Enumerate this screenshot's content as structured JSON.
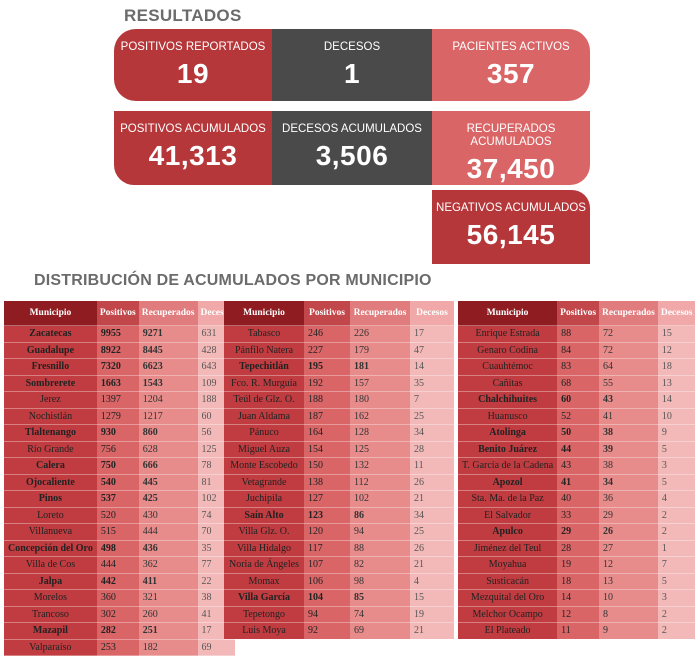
{
  "titles": {
    "results": "RESULTADOS",
    "distribution": "DISTRIBUCIÓN DE ACUMULADOS POR MUNICIPIO"
  },
  "cards": {
    "positivos_reportados": {
      "label": "POSITIVOS REPORTADOS",
      "value": "19"
    },
    "decesos": {
      "label": "DECESOS",
      "value": "1"
    },
    "pacientes_activos": {
      "label": "PACIENTES ACTIVOS",
      "value": "357"
    },
    "positivos_acumulados": {
      "label": "POSITIVOS ACUMULADOS",
      "value": "41,313"
    },
    "decesos_acumulados": {
      "label": "DECESOS ACUMULADOS",
      "value": "3,506"
    },
    "recuperados_acumulados": {
      "label": "RECUPERADOS ACUMULADOS",
      "value": "37,450"
    },
    "negativos_acumulados": {
      "label": "NEGATIVOS ACUMULADOS",
      "value": "56,145"
    }
  },
  "colors": {
    "dark_red": "#b5373a",
    "gray": "#4a4a4a",
    "pink": "#d96566"
  },
  "table_headers": [
    "Municipio",
    "Positivos",
    "Recuperados",
    "Decesos"
  ],
  "tables": [
    [
      {
        "m": "Zacatecas",
        "p": "9955",
        "r": "9271",
        "d": "631",
        "bold": true
      },
      {
        "m": "Guadalupe",
        "p": "8922",
        "r": "8445",
        "d": "428",
        "bold": true
      },
      {
        "m": "Fresnillo",
        "p": "7320",
        "r": "6623",
        "d": "643",
        "bold": true
      },
      {
        "m": "Sombrerete",
        "p": "1663",
        "r": "1543",
        "d": "109",
        "bold": true
      },
      {
        "m": "Jerez",
        "p": "1397",
        "r": "1204",
        "d": "188",
        "bold": false
      },
      {
        "m": "Nochistlán",
        "p": "1279",
        "r": "1217",
        "d": "60",
        "bold": false
      },
      {
        "m": "Tlaltenango",
        "p": "930",
        "r": "860",
        "d": "56",
        "bold": true
      },
      {
        "m": "Río Grande",
        "p": "756",
        "r": "628",
        "d": "125",
        "bold": false
      },
      {
        "m": "Calera",
        "p": "750",
        "r": "666",
        "d": "78",
        "bold": true
      },
      {
        "m": "Ojocaliente",
        "p": "540",
        "r": "445",
        "d": "81",
        "bold": true
      },
      {
        "m": "Pinos",
        "p": "537",
        "r": "425",
        "d": "102",
        "bold": true
      },
      {
        "m": "Loreto",
        "p": "520",
        "r": "430",
        "d": "74",
        "bold": false
      },
      {
        "m": "Villanueva",
        "p": "515",
        "r": "444",
        "d": "70",
        "bold": false
      },
      {
        "m": "Concepción del Oro",
        "p": "498",
        "r": "436",
        "d": "35",
        "bold": true,
        "tall": true
      },
      {
        "m": "Villa de Cos",
        "p": "444",
        "r": "362",
        "d": "77",
        "bold": false
      },
      {
        "m": "Jalpa",
        "p": "442",
        "r": "411",
        "d": "22",
        "bold": true
      },
      {
        "m": "Morelos",
        "p": "360",
        "r": "321",
        "d": "38",
        "bold": false
      },
      {
        "m": "Trancoso",
        "p": "302",
        "r": "260",
        "d": "41",
        "bold": false
      },
      {
        "m": "Mazapil",
        "p": "282",
        "r": "251",
        "d": "17",
        "bold": true
      },
      {
        "m": "Valparaíso",
        "p": "253",
        "r": "182",
        "d": "69",
        "bold": false
      }
    ],
    [
      {
        "m": "Tabasco",
        "p": "246",
        "r": "226",
        "d": "17",
        "bold": false
      },
      {
        "m": "Pánfilo Natera",
        "p": "227",
        "r": "179",
        "d": "47",
        "bold": false
      },
      {
        "m": "Tepechitlán",
        "p": "195",
        "r": "181",
        "d": "14",
        "bold": true
      },
      {
        "m": "Fco. R. Murguía",
        "p": "192",
        "r": "157",
        "d": "35",
        "bold": false
      },
      {
        "m": "Teúl de Glz. O.",
        "p": "188",
        "r": "180",
        "d": "7",
        "bold": false
      },
      {
        "m": "Juan Aldama",
        "p": "187",
        "r": "162",
        "d": "25",
        "bold": false
      },
      {
        "m": "Pánuco",
        "p": "164",
        "r": "128",
        "d": "34",
        "bold": false
      },
      {
        "m": "Miguel Auza",
        "p": "154",
        "r": "125",
        "d": "28",
        "bold": false
      },
      {
        "m": "Monte Escobedo",
        "p": "150",
        "r": "132",
        "d": "11",
        "bold": false
      },
      {
        "m": "Vetagrande",
        "p": "138",
        "r": "112",
        "d": "26",
        "bold": false
      },
      {
        "m": "Juchipila",
        "p": "127",
        "r": "102",
        "d": "21",
        "bold": false
      },
      {
        "m": "Saín Alto",
        "p": "123",
        "r": "86",
        "d": "34",
        "bold": true
      },
      {
        "m": "Villa Glz. O.",
        "p": "120",
        "r": "94",
        "d": "25",
        "bold": false
      },
      {
        "m": "Villa Hidalgo",
        "p": "117",
        "r": "88",
        "d": "26",
        "bold": false
      },
      {
        "m": "Noria de Ángeles",
        "p": "107",
        "r": "82",
        "d": "21",
        "bold": false
      },
      {
        "m": "Momax",
        "p": "106",
        "r": "98",
        "d": "4",
        "bold": false
      },
      {
        "m": "Villa García",
        "p": "104",
        "r": "85",
        "d": "15",
        "bold": true
      },
      {
        "m": "Tepetongo",
        "p": "94",
        "r": "74",
        "d": "19",
        "bold": false
      },
      {
        "m": "Luis Moya",
        "p": "92",
        "r": "69",
        "d": "21",
        "bold": false
      }
    ],
    [
      {
        "m": "Enrique Estrada",
        "p": "88",
        "r": "72",
        "d": "15",
        "bold": false
      },
      {
        "m": "Genaro Codina",
        "p": "84",
        "r": "72",
        "d": "12",
        "bold": false
      },
      {
        "m": "Cuauhtémoc",
        "p": "83",
        "r": "64",
        "d": "18",
        "bold": false
      },
      {
        "m": "Cañitas",
        "p": "68",
        "r": "55",
        "d": "13",
        "bold": false
      },
      {
        "m": "Chalchihuites",
        "p": "60",
        "r": "43",
        "d": "14",
        "bold": true
      },
      {
        "m": "Huanusco",
        "p": "52",
        "r": "41",
        "d": "10",
        "bold": false
      },
      {
        "m": "Atolinga",
        "p": "50",
        "r": "38",
        "d": "9",
        "bold": true
      },
      {
        "m": "Benito Juárez",
        "p": "44",
        "r": "39",
        "d": "5",
        "bold": true
      },
      {
        "m": "T. García de la Cadena",
        "p": "43",
        "r": "38",
        "d": "3",
        "bold": false,
        "tall": true
      },
      {
        "m": "Apozol",
        "p": "41",
        "r": "34",
        "d": "5",
        "bold": true
      },
      {
        "m": "Sta. Ma. de la Paz",
        "p": "40",
        "r": "36",
        "d": "4",
        "bold": false
      },
      {
        "m": "El Salvador",
        "p": "33",
        "r": "29",
        "d": "2",
        "bold": false
      },
      {
        "m": "Apulco",
        "p": "29",
        "r": "26",
        "d": "2",
        "bold": true
      },
      {
        "m": "Jiménez del Teul",
        "p": "28",
        "r": "27",
        "d": "1",
        "bold": false
      },
      {
        "m": "Moyahua",
        "p": "19",
        "r": "12",
        "d": "7",
        "bold": false
      },
      {
        "m": "Susticacán",
        "p": "18",
        "r": "13",
        "d": "5",
        "bold": false
      },
      {
        "m": "Mezquital del Oro",
        "p": "14",
        "r": "10",
        "d": "3",
        "bold": false
      },
      {
        "m": "Melchor Ocampo",
        "p": "12",
        "r": "8",
        "d": "2",
        "bold": false
      },
      {
        "m": "El Plateado",
        "p": "11",
        "r": "9",
        "d": "2",
        "bold": false
      }
    ]
  ]
}
